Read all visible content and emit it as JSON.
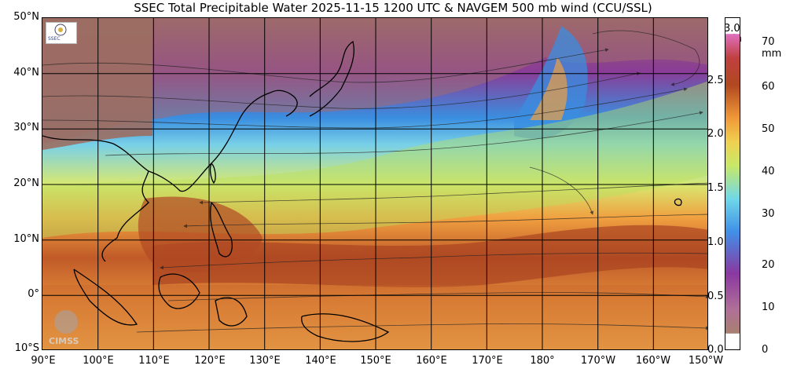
{
  "title": "SSEC Total Precipitable Water  2025-11-15 1200 UTC & NAVGEM 500 mb wind (CCU/SSL)",
  "map": {
    "lat_labels": [
      "50°N",
      "40°N",
      "30°N",
      "20°N",
      "10°N",
      "0°",
      "10°S"
    ],
    "lon_labels": [
      "90°E",
      "100°E",
      "110°E",
      "120°E",
      "130°E",
      "140°E",
      "150°E",
      "160°E",
      "170°E",
      "180°",
      "170°W",
      "160°W",
      "150°W"
    ]
  },
  "colorbar": {
    "inch_unit": "in",
    "mm_unit": "mm",
    "inch_ticks": [
      "3.0",
      "2.5",
      "2.0",
      "1.5",
      "1.0",
      "0.5",
      "0.0"
    ],
    "mm_ticks": [
      "70",
      "60",
      "50",
      "40",
      "30",
      "20",
      "10",
      "0"
    ]
  },
  "logos": {
    "cimss": "CIMSS",
    "ssec": "SSEC"
  },
  "colors": {
    "dry_brown": "#a07060",
    "purple": "#8a3c96",
    "blue": "#3a8ee0",
    "cyan": "#78d0e8",
    "green_yellow": "#d8e870",
    "orange": "#f0a040",
    "wet_brown": "#a84020"
  }
}
